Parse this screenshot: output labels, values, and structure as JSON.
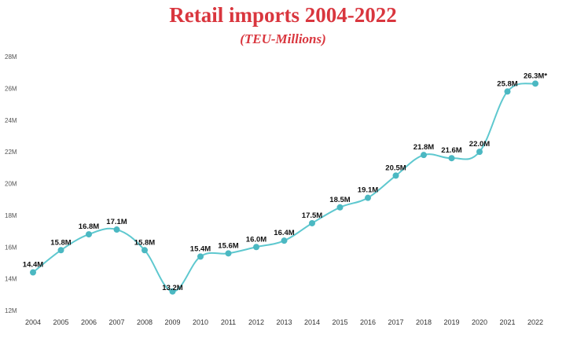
{
  "header": {
    "title": "Retail imports 2004-2022",
    "subtitle": "(TEU-Millions)"
  },
  "chart_data": {
    "type": "line",
    "title": "Retail imports 2004-2022",
    "subtitle": "(TEU-Millions)",
    "xlabel": "",
    "ylabel": "",
    "x": [
      "2004",
      "2005",
      "2006",
      "2007",
      "2008",
      "2009",
      "2010",
      "2011",
      "2012",
      "2013",
      "2014",
      "2015",
      "2016",
      "2017",
      "2018",
      "2019",
      "2020",
      "2021",
      "2022"
    ],
    "values": [
      14.4,
      15.8,
      16.8,
      17.1,
      15.8,
      13.2,
      15.4,
      15.6,
      16.0,
      16.4,
      17.5,
      18.5,
      19.1,
      20.5,
      21.8,
      21.6,
      22.0,
      25.8,
      26.3
    ],
    "data_labels": [
      "14.4M",
      "15.8M",
      "16.8M",
      "17.1M",
      "15.8M",
      "13.2M",
      "15.4M",
      "15.6M",
      "16.0M",
      "16.4M",
      "17.5M",
      "18.5M",
      "19.1M",
      "20.5M",
      "21.8M",
      "21.6M",
      "22.0M",
      "25.8M",
      "26.3M*"
    ],
    "y_ticks": [
      12,
      14,
      16,
      18,
      20,
      22,
      24,
      26,
      28
    ],
    "y_tick_labels": [
      "12M",
      "14M",
      "16M",
      "18M",
      "20M",
      "22M",
      "24M",
      "26M",
      "28M"
    ],
    "ylim": [
      12,
      28
    ],
    "grid": false,
    "legend": "none",
    "colors": {
      "line": "#5ec8cf",
      "marker": "#4bb8c2",
      "title": "#d9363e"
    }
  }
}
